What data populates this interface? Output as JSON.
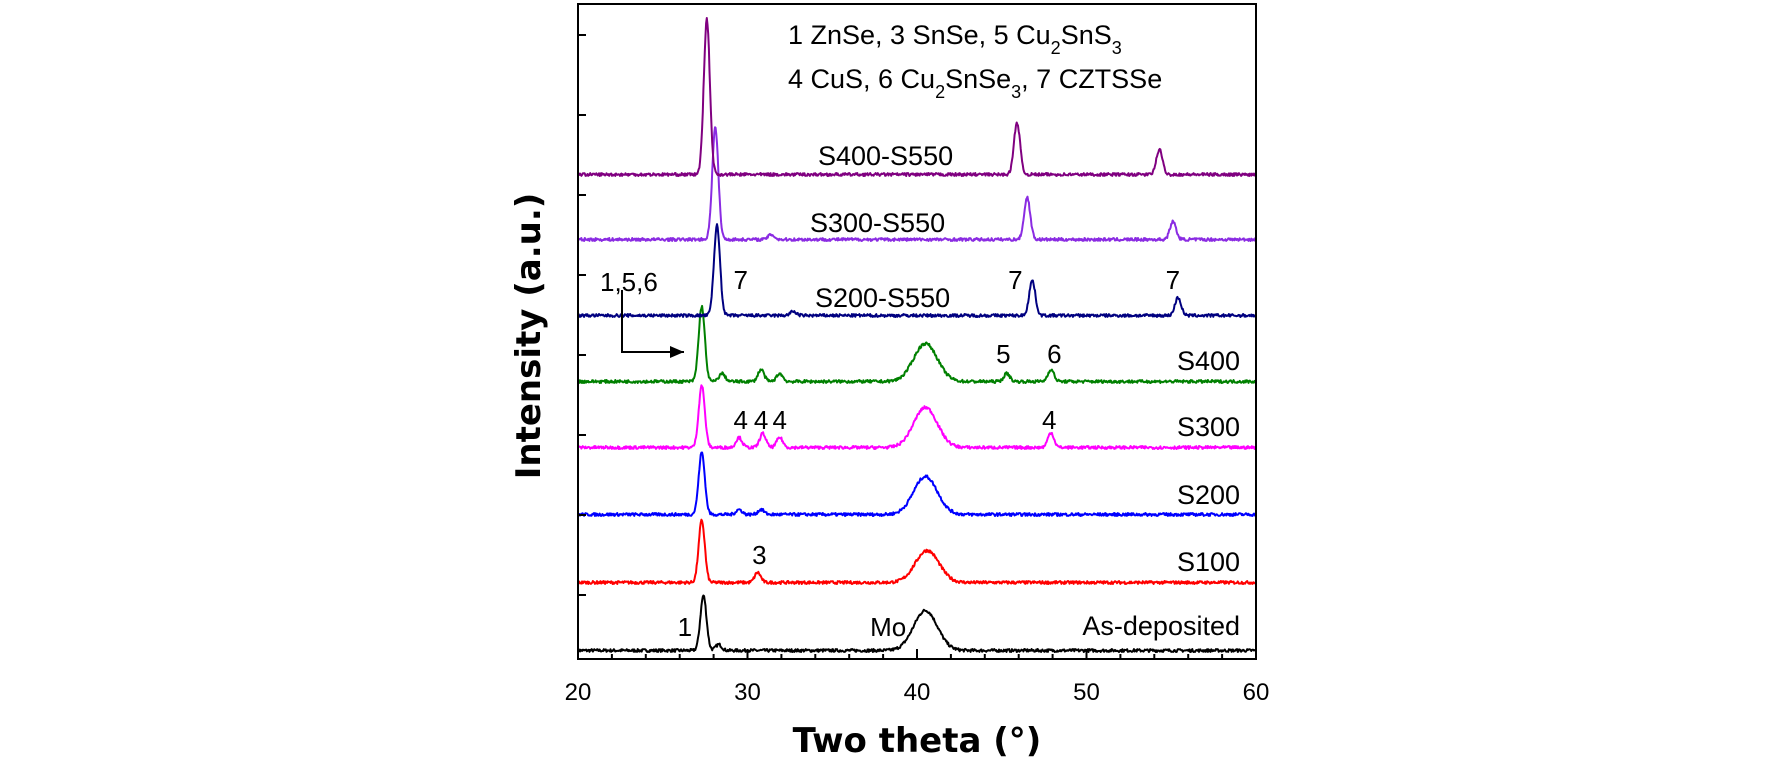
{
  "chart_data": {
    "type": "line",
    "xlabel": "Two theta (°)",
    "ylabel": "Intensity (a.u.)",
    "xlim": [
      20,
      60
    ],
    "xticks": [
      "20",
      "30",
      "40",
      "50",
      "60"
    ],
    "grid": false,
    "legend_lines": [
      "1 ZnSe, 3 SnSe, 5 Cu₂SnS₃",
      "4 CuS, 6 Cu₂SnSe₃, 7 CZTSSe"
    ],
    "series": [
      {
        "name": "As-deposited",
        "color": "#000000",
        "peaks": [
          {
            "x": 27.4,
            "h": 55
          },
          {
            "x": 28.3,
            "h": 6
          },
          {
            "x": 40.5,
            "h": 40,
            "w": 0.7
          }
        ]
      },
      {
        "name": "S100",
        "color": "#ff0000",
        "peaks": [
          {
            "x": 27.3,
            "h": 62
          },
          {
            "x": 30.6,
            "h": 10
          },
          {
            "x": 40.6,
            "h": 32,
            "w": 0.7
          }
        ]
      },
      {
        "name": "S200",
        "color": "#0000ff",
        "peaks": [
          {
            "x": 27.3,
            "h": 62
          },
          {
            "x": 29.5,
            "h": 5
          },
          {
            "x": 30.8,
            "h": 5
          },
          {
            "x": 40.5,
            "h": 38,
            "w": 0.7
          }
        ]
      },
      {
        "name": "S300",
        "color": "#ff00ff",
        "peaks": [
          {
            "x": 27.3,
            "h": 62
          },
          {
            "x": 29.5,
            "h": 10
          },
          {
            "x": 30.9,
            "h": 14
          },
          {
            "x": 31.9,
            "h": 10
          },
          {
            "x": 40.5,
            "h": 40,
            "w": 0.7
          },
          {
            "x": 47.9,
            "h": 15
          }
        ]
      },
      {
        "name": "S400",
        "color": "#008000",
        "peaks": [
          {
            "x": 27.3,
            "h": 75
          },
          {
            "x": 28.5,
            "h": 8
          },
          {
            "x": 30.8,
            "h": 12
          },
          {
            "x": 31.9,
            "h": 8
          },
          {
            "x": 40.5,
            "h": 38,
            "w": 0.7
          },
          {
            "x": 45.3,
            "h": 8
          },
          {
            "x": 47.9,
            "h": 12
          }
        ]
      },
      {
        "name": "S200-S550",
        "color": "#000080",
        "peaks": [
          {
            "x": 28.2,
            "h": 90
          },
          {
            "x": 32.7,
            "h": 4
          },
          {
            "x": 46.8,
            "h": 35
          },
          {
            "x": 55.4,
            "h": 18
          }
        ]
      },
      {
        "name": "S300-S550",
        "color": "#8a2be2",
        "peaks": [
          {
            "x": 28.1,
            "h": 112
          },
          {
            "x": 31.4,
            "h": 5
          },
          {
            "x": 46.5,
            "h": 42
          },
          {
            "x": 55.1,
            "h": 18
          }
        ]
      },
      {
        "name": "S400-S550",
        "color": "#800080",
        "peaks": [
          {
            "x": 27.6,
            "h": 155
          },
          {
            "x": 45.9,
            "h": 52
          },
          {
            "x": 54.3,
            "h": 25
          }
        ]
      }
    ],
    "annotations": [
      {
        "text": "1",
        "series": "As-deposited",
        "x": 26.3
      },
      {
        "text": "Mo",
        "series": "As-deposited",
        "x": 38.3
      },
      {
        "text": "3",
        "series": "S100",
        "x": 30.7
      },
      {
        "text": "4",
        "series": "S300",
        "x": 29.6
      },
      {
        "text": "4",
        "series": "S300",
        "x": 30.8
      },
      {
        "text": "4",
        "series": "S300",
        "x": 31.9
      },
      {
        "text": "4",
        "series": "S300",
        "x": 47.8
      },
      {
        "text": "5",
        "series": "S400",
        "x": 45.1
      },
      {
        "text": "6",
        "series": "S400",
        "x": 48.1
      },
      {
        "text": "1,5,6",
        "series": "S400",
        "x": 23.0
      },
      {
        "text": "7",
        "series": "S200-S550",
        "x": 29.6
      },
      {
        "text": "7",
        "series": "S200-S550",
        "x": 45.8
      },
      {
        "text": "7",
        "series": "S200-S550",
        "x": 55.1
      }
    ]
  }
}
